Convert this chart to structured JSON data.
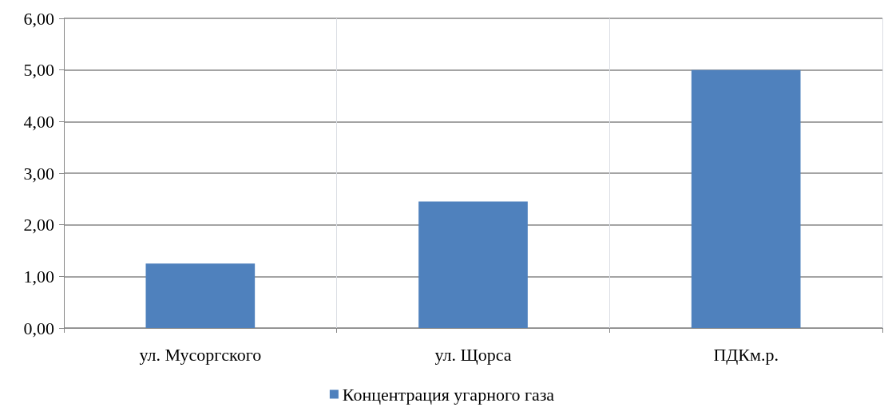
{
  "chart_data": {
    "type": "bar",
    "categories": [
      "ул. Мусоргского",
      "ул. Щорса",
      "ПДКм.р."
    ],
    "series": [
      {
        "name": "Концентрация угарного газа",
        "color": "#4f81bd",
        "values": [
          1.25,
          2.45,
          5.0
        ]
      }
    ],
    "ylim": [
      0,
      6
    ],
    "yticks": [
      {
        "value": 0,
        "label": "0,00"
      },
      {
        "value": 1,
        "label": "1,00"
      },
      {
        "value": 2,
        "label": "2,00"
      },
      {
        "value": 3,
        "label": "3,00"
      },
      {
        "value": 4,
        "label": "4,00"
      },
      {
        "value": 5,
        "label": "5,00"
      },
      {
        "value": 6,
        "label": "6,00"
      }
    ],
    "grid": true,
    "legend": "bottom"
  }
}
